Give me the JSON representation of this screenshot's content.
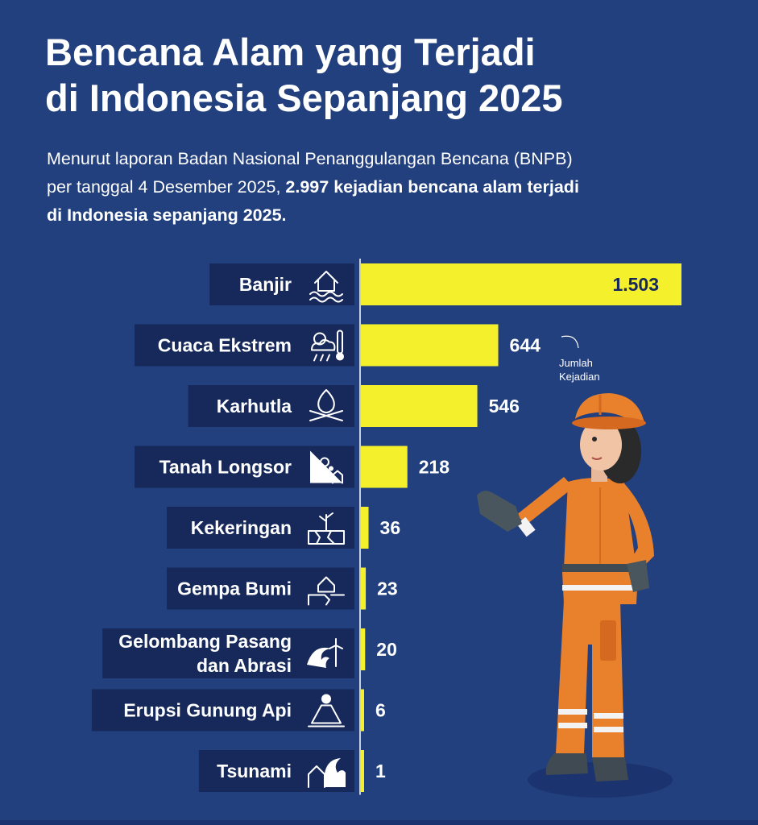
{
  "title_line1": "Bencana Alam yang Terjadi",
  "title_line2": "di Indonesia Sepanjang 2025",
  "subtitle_line1": "Menurut laporan Badan Nasional Penanggulangan Bencana (BNPB)",
  "subtitle_line2_plain": "per tanggal 4 Desember 2025, ",
  "subtitle_line2_bold": "2.997 kejadian bencana alam terjadi",
  "subtitle_line3_bold": "di Indonesia sepanjang 2025.",
  "annotation_line1": "Jumlah",
  "annotation_line2": "Kejadian",
  "colors": {
    "background": "#223f7e",
    "bar": "#f5f02c",
    "label_box": "#16295a",
    "text": "#ffffff"
  },
  "chart_data": {
    "type": "bar",
    "orientation": "horizontal",
    "categories": [
      "Banjir",
      "Cuaca Ekstrem",
      "Karhutla",
      "Tanah Longsor",
      "Kekeringan",
      "Gempa Bumi",
      "Gelombang Pasang dan Abrasi",
      "Erupsi Gunung Api",
      "Tsunami"
    ],
    "category_lines": [
      [
        "Banjir"
      ],
      [
        "Cuaca Ekstrem"
      ],
      [
        "Karhutla"
      ],
      [
        "Tanah Longsor"
      ],
      [
        "Kekeringan"
      ],
      [
        "Gempa Bumi"
      ],
      [
        "Gelombang Pasang",
        "dan Abrasi"
      ],
      [
        "Erupsi Gunung Api"
      ],
      [
        "Tsunami"
      ]
    ],
    "values": [
      1503,
      644,
      546,
      218,
      36,
      23,
      20,
      6,
      1
    ],
    "value_labels": [
      "1.503",
      "644",
      "546",
      "218",
      "36",
      "23",
      "20",
      "6",
      "1"
    ],
    "icons": [
      "flood-icon",
      "weather-icon",
      "fire-icon",
      "landslide-icon",
      "drought-icon",
      "earthquake-icon",
      "wave-icon",
      "volcano-icon",
      "tsunami-icon"
    ]
  }
}
